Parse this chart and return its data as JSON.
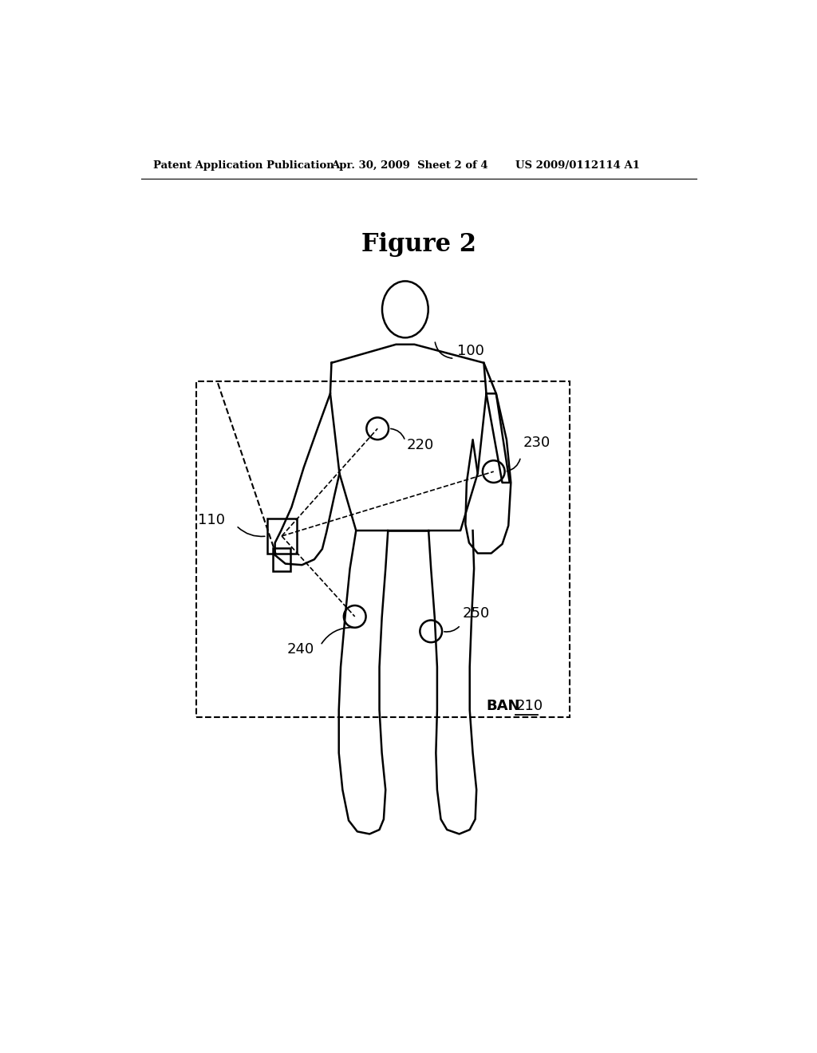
{
  "title": "Figure 2",
  "header_left": "Patent Application Publication",
  "header_mid": "Apr. 30, 2009  Sheet 2 of 4",
  "header_right": "US 2009/0112114 A1",
  "bg_color": "#ffffff",
  "line_color": "#000000",
  "label_100": "100",
  "label_110": "110",
  "label_210": "210",
  "label_220": "220",
  "label_230": "230",
  "label_240": "240",
  "label_250": "250",
  "label_BAN": "BAN"
}
